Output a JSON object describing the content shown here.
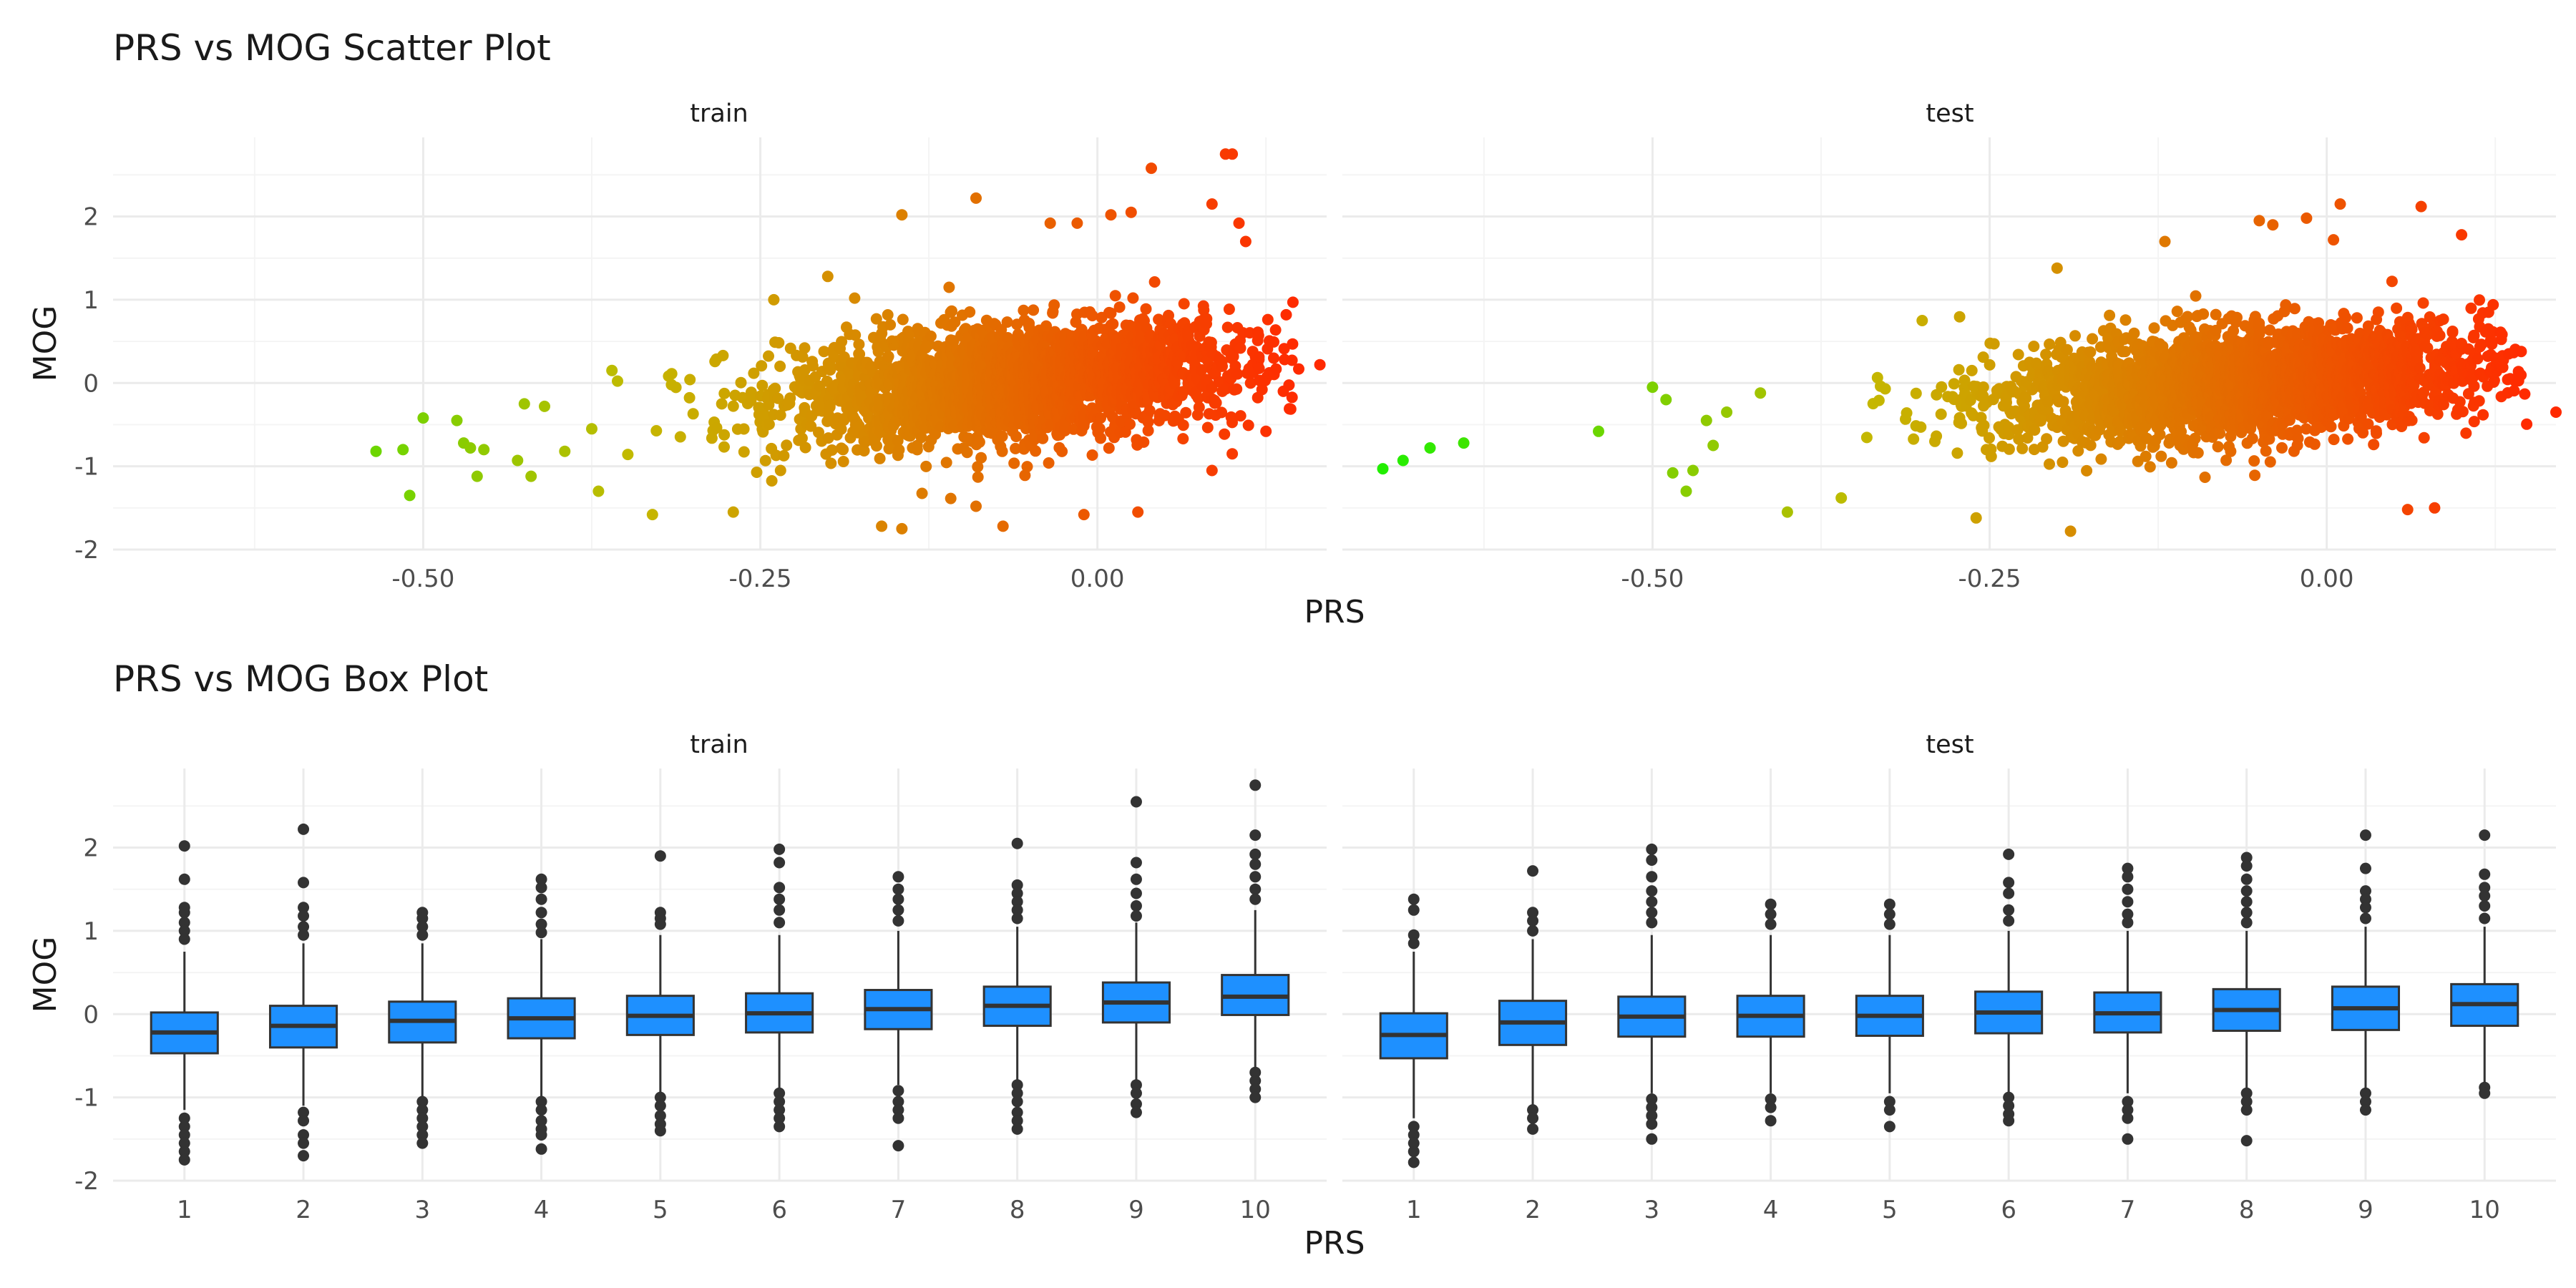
{
  "chart_data": [
    {
      "type": "scatter",
      "title": "PRS vs MOG Scatter Plot",
      "xlabel": "PRS",
      "ylabel": "MOG",
      "facets": [
        "train",
        "test"
      ],
      "xlim": [
        -0.73,
        0.17
      ],
      "ylim": [
        -2.0,
        2.95
      ],
      "x_ticks": [
        -0.5,
        -0.25,
        0.0
      ],
      "x_tick_labels": [
        "-0.50",
        "-0.25",
        "0.00"
      ],
      "y_ticks": [
        -2,
        -1,
        0,
        1,
        2
      ],
      "y_tick_labels": [
        "-2",
        "-1",
        "0",
        "1",
        "2"
      ],
      "color_scale": {
        "low": "#22ee00",
        "mid": "#c4b900",
        "high": "#ff2a00",
        "domain": [
          -0.7,
          0.15
        ]
      },
      "grid": true,
      "legend": "none",
      "series": [
        {
          "facet": "train",
          "summary": {
            "x_mean": -0.06,
            "x_sd": 0.085,
            "slope": 2.2,
            "noise_sd": 0.33
          },
          "points": [
            [
              -0.535,
              -0.82
            ],
            [
              -0.515,
              -0.8
            ],
            [
              -0.51,
              -1.35
            ],
            [
              -0.5,
              -0.42
            ],
            [
              -0.47,
              -0.72
            ],
            [
              -0.465,
              -0.78
            ],
            [
              -0.46,
              -1.12
            ],
            [
              -0.455,
              -0.8
            ],
            [
              -0.475,
              -0.45
            ],
            [
              -0.43,
              -0.93
            ],
            [
              -0.425,
              -0.25
            ],
            [
              -0.42,
              -1.12
            ],
            [
              -0.41,
              -0.28
            ],
            [
              -0.395,
              -0.82
            ],
            [
              -0.375,
              -0.55
            ],
            [
              -0.36,
              0.15
            ],
            [
              -0.37,
              -1.3
            ],
            [
              -0.33,
              -1.58
            ],
            [
              -0.27,
              -1.55
            ],
            [
              -0.235,
              -1.05
            ],
            [
              -0.24,
              1.0
            ],
            [
              -0.2,
              1.28
            ],
            [
              -0.18,
              1.02
            ],
            [
              -0.16,
              -1.72
            ],
            [
              -0.145,
              -1.75
            ],
            [
              -0.145,
              2.02
            ],
            [
              -0.09,
              2.22
            ],
            [
              -0.11,
              1.15
            ],
            [
              -0.09,
              -1.48
            ],
            [
              -0.07,
              -1.72
            ],
            [
              -0.035,
              1.92
            ],
            [
              -0.015,
              1.92
            ],
            [
              -0.01,
              -1.58
            ],
            [
              0.01,
              2.02
            ],
            [
              0.025,
              2.05
            ],
            [
              0.04,
              2.58
            ],
            [
              0.085,
              2.15
            ],
            [
              0.095,
              2.75
            ],
            [
              0.1,
              2.75
            ],
            [
              0.105,
              1.92
            ],
            [
              0.11,
              1.7
            ],
            [
              0.125,
              -0.58
            ],
            [
              0.14,
              0.82
            ],
            [
              0.145,
              0.97
            ],
            [
              0.165,
              0.22
            ],
            [
              0.1,
              -0.85
            ],
            [
              0.085,
              -1.05
            ],
            [
              0.03,
              -1.55
            ]
          ]
        },
        {
          "facet": "test",
          "summary": {
            "x_mean": -0.06,
            "x_sd": 0.09,
            "slope": 2.2,
            "noise_sd": 0.33
          },
          "points": [
            [
              -0.7,
              -1.03
            ],
            [
              -0.685,
              -0.93
            ],
            [
              -0.665,
              -0.78
            ],
            [
              -0.64,
              -0.72
            ],
            [
              -0.54,
              -0.58
            ],
            [
              -0.5,
              -0.05
            ],
            [
              -0.49,
              -0.2
            ],
            [
              -0.485,
              -1.08
            ],
            [
              -0.475,
              -1.3
            ],
            [
              -0.47,
              -1.05
            ],
            [
              -0.46,
              -0.45
            ],
            [
              -0.455,
              -0.75
            ],
            [
              -0.445,
              -0.35
            ],
            [
              -0.42,
              -0.12
            ],
            [
              -0.4,
              -1.55
            ],
            [
              -0.36,
              -1.38
            ],
            [
              -0.3,
              0.75
            ],
            [
              -0.26,
              -1.62
            ],
            [
              -0.2,
              1.38
            ],
            [
              -0.19,
              -1.78
            ],
            [
              -0.12,
              1.7
            ],
            [
              -0.05,
              1.95
            ],
            [
              -0.04,
              1.9
            ],
            [
              -0.015,
              1.98
            ],
            [
              0.005,
              1.72
            ],
            [
              0.01,
              2.15
            ],
            [
              0.07,
              2.12
            ],
            [
              0.1,
              1.78
            ],
            [
              0.12,
              0.85
            ],
            [
              0.125,
              0.3
            ],
            [
              0.135,
              0.35
            ],
            [
              0.17,
              -0.35
            ],
            [
              0.06,
              -1.52
            ],
            [
              0.08,
              -1.5
            ]
          ]
        }
      ]
    },
    {
      "type": "box",
      "title": "PRS vs MOG Box Plot",
      "xlabel": "PRS",
      "ylabel": "MOG",
      "facets": [
        "train",
        "test"
      ],
      "categories": [
        "1",
        "2",
        "3",
        "4",
        "5",
        "6",
        "7",
        "8",
        "9",
        "10"
      ],
      "ylim": [
        -2.0,
        2.95
      ],
      "y_ticks": [
        -2,
        -1,
        0,
        1,
        2
      ],
      "y_tick_labels": [
        "-2",
        "-1",
        "0",
        "1",
        "2"
      ],
      "box_color": "#1e90ff",
      "grid": true,
      "series": [
        {
          "facet": "train",
          "boxes": [
            {
              "q1": -0.47,
              "median": -0.22,
              "q3": 0.02,
              "lower": -1.15,
              "upper": 0.75,
              "outliers": [
                2.02,
                1.62,
                1.28,
                1.22,
                1.1,
                1.0,
                0.9,
                -1.25,
                -1.35,
                -1.45,
                -1.55,
                -1.65,
                -1.75
              ]
            },
            {
              "q1": -0.4,
              "median": -0.14,
              "q3": 0.1,
              "lower": -1.1,
              "upper": 0.85,
              "outliers": [
                2.22,
                1.58,
                1.28,
                1.18,
                1.05,
                0.95,
                -1.18,
                -1.28,
                -1.45,
                -1.55,
                -1.7
              ]
            },
            {
              "q1": -0.34,
              "median": -0.08,
              "q3": 0.15,
              "lower": -1.0,
              "upper": 0.85,
              "outliers": [
                1.22,
                1.15,
                1.05,
                0.95,
                -1.05,
                -1.15,
                -1.25,
                -1.35,
                -1.45,
                -1.55
              ]
            },
            {
              "q1": -0.29,
              "median": -0.05,
              "q3": 0.19,
              "lower": -1.0,
              "upper": 0.9,
              "outliers": [
                1.62,
                1.52,
                1.38,
                1.22,
                1.08,
                0.98,
                -1.05,
                -1.15,
                -1.28,
                -1.38,
                -1.45,
                -1.62
              ]
            },
            {
              "q1": -0.25,
              "median": -0.02,
              "q3": 0.22,
              "lower": -0.95,
              "upper": 0.95,
              "outliers": [
                1.9,
                1.22,
                1.15,
                1.08,
                -1.0,
                -1.1,
                -1.22,
                -1.32,
                -1.4
              ]
            },
            {
              "q1": -0.22,
              "median": 0.01,
              "q3": 0.25,
              "lower": -0.9,
              "upper": 0.95,
              "outliers": [
                1.98,
                1.82,
                1.52,
                1.38,
                1.25,
                1.1,
                -0.95,
                -1.05,
                -1.15,
                -1.25,
                -1.35
              ]
            },
            {
              "q1": -0.18,
              "median": 0.06,
              "q3": 0.29,
              "lower": -0.85,
              "upper": 1.0,
              "outliers": [
                1.65,
                1.5,
                1.38,
                1.25,
                1.12,
                -0.92,
                -1.05,
                -1.15,
                -1.25,
                -1.58
              ]
            },
            {
              "q1": -0.14,
              "median": 0.1,
              "q3": 0.33,
              "lower": -0.8,
              "upper": 1.05,
              "outliers": [
                2.05,
                1.55,
                1.45,
                1.35,
                1.25,
                1.15,
                -0.85,
                -0.95,
                -1.05,
                -1.18,
                -1.28,
                -1.38
              ]
            },
            {
              "q1": -0.1,
              "median": 0.14,
              "q3": 0.38,
              "lower": -0.8,
              "upper": 1.1,
              "outliers": [
                2.55,
                1.82,
                1.62,
                1.45,
                1.3,
                1.18,
                -0.85,
                -0.95,
                -1.08,
                -1.18
              ]
            },
            {
              "q1": -0.01,
              "median": 0.21,
              "q3": 0.47,
              "lower": -0.65,
              "upper": 1.25,
              "outliers": [
                2.75,
                2.15,
                1.92,
                1.8,
                1.65,
                1.5,
                1.38,
                -0.7,
                -0.8,
                -0.9,
                -1.0
              ]
            }
          ]
        },
        {
          "facet": "test",
          "boxes": [
            {
              "q1": -0.53,
              "median": -0.25,
              "q3": 0.01,
              "lower": -1.25,
              "upper": 0.75,
              "outliers": [
                1.38,
                1.25,
                0.95,
                0.85,
                -1.35,
                -1.45,
                -1.55,
                -1.65,
                -1.78
              ]
            },
            {
              "q1": -0.37,
              "median": -0.1,
              "q3": 0.16,
              "lower": -1.1,
              "upper": 0.9,
              "outliers": [
                1.72,
                1.22,
                1.12,
                1.0,
                -1.15,
                -1.25,
                -1.38
              ]
            },
            {
              "q1": -0.27,
              "median": -0.03,
              "q3": 0.21,
              "lower": -0.95,
              "upper": 0.95,
              "outliers": [
                1.98,
                1.85,
                1.65,
                1.48,
                1.35,
                1.22,
                1.1,
                -1.02,
                -1.12,
                -1.22,
                -1.32,
                -1.5
              ]
            },
            {
              "q1": -0.27,
              "median": -0.02,
              "q3": 0.22,
              "lower": -0.95,
              "upper": 0.95,
              "outliers": [
                1.32,
                1.2,
                1.08,
                -1.02,
                -1.12,
                -1.28
              ]
            },
            {
              "q1": -0.26,
              "median": -0.02,
              "q3": 0.22,
              "lower": -0.95,
              "upper": 0.95,
              "outliers": [
                1.32,
                1.2,
                1.08,
                -1.05,
                -1.15,
                -1.35
              ]
            },
            {
              "q1": -0.23,
              "median": 0.02,
              "q3": 0.27,
              "lower": -0.95,
              "upper": 1.0,
              "outliers": [
                1.92,
                1.58,
                1.45,
                1.25,
                1.12,
                -1.0,
                -1.1,
                -1.2,
                -1.28
              ]
            },
            {
              "q1": -0.22,
              "median": 0.01,
              "q3": 0.26,
              "lower": -0.95,
              "upper": 1.0,
              "outliers": [
                1.75,
                1.65,
                1.5,
                1.35,
                1.2,
                1.1,
                -1.05,
                -1.15,
                -1.25,
                -1.5
              ]
            },
            {
              "q1": -0.2,
              "median": 0.05,
              "q3": 0.3,
              "lower": -0.9,
              "upper": 1.0,
              "outliers": [
                1.88,
                1.78,
                1.62,
                1.48,
                1.35,
                1.22,
                1.1,
                -0.95,
                -1.05,
                -1.15,
                -1.52
              ]
            },
            {
              "q1": -0.19,
              "median": 0.07,
              "q3": 0.33,
              "lower": -0.9,
              "upper": 1.05,
              "outliers": [
                2.15,
                1.75,
                1.48,
                1.38,
                1.28,
                1.15,
                -0.95,
                -1.05,
                -1.15
              ]
            },
            {
              "q1": -0.14,
              "median": 0.12,
              "q3": 0.36,
              "lower": -0.85,
              "upper": 1.05,
              "outliers": [
                2.15,
                1.68,
                1.52,
                1.42,
                1.3,
                1.15,
                -0.88,
                -0.95
              ]
            }
          ]
        }
      ]
    }
  ]
}
